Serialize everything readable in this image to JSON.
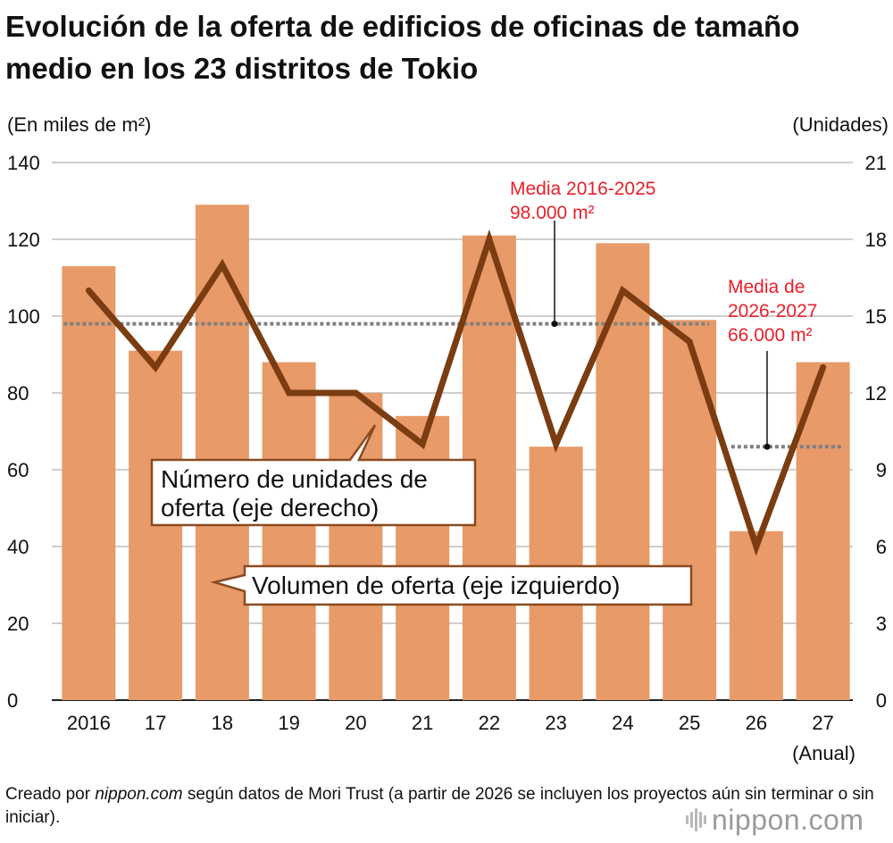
{
  "title": "Evolución de la oferta de edificios de oficinas de tamaño medio en los 23 distritos de Tokio",
  "footer": {
    "prefix": "Creado por ",
    "source": "nippon.com",
    "rest": " según datos de Mori Trust (a partir de 2026 se incluyen los proyectos aún sin terminar o sin iniciar)."
  },
  "logo": {
    "name": "nippon",
    "dot": ".",
    "tld": "com"
  },
  "colors": {
    "bar": "#e89a68",
    "line": "#7a3c10",
    "average_line": "#7f7f7f",
    "annotation": "#e8202a",
    "grid": "#bdbdbd",
    "callout_border": "#8a4a20"
  },
  "chart_data": {
    "type": "bar",
    "categories": [
      "2016",
      "17",
      "18",
      "19",
      "20",
      "21",
      "22",
      "23",
      "24",
      "25",
      "26",
      "27"
    ],
    "x_suffix_label": "(Anual)",
    "left_axis": {
      "label": "(En miles de m²)",
      "ylim": [
        0,
        140
      ],
      "ticks": [
        0,
        20,
        40,
        60,
        80,
        100,
        120,
        140
      ]
    },
    "right_axis": {
      "label": "(Unidades)",
      "ylim": [
        0,
        21
      ],
      "ticks": [
        0,
        3,
        6,
        9,
        12,
        15,
        18,
        21
      ]
    },
    "grid": true,
    "series": [
      {
        "name": "Volumen de oferta (eje izquierdo)",
        "type": "bar",
        "axis": "left",
        "values": [
          113,
          91,
          129,
          88,
          80,
          74,
          121,
          66,
          119,
          99,
          44,
          88
        ]
      },
      {
        "name": "Número de unidades de oferta (eje derecho)",
        "type": "line",
        "axis": "right",
        "values": [
          16,
          13,
          17,
          12,
          12,
          10,
          18,
          10,
          16,
          14,
          6,
          13
        ]
      }
    ],
    "callouts": {
      "line": [
        "Número de unidades de",
        "oferta (eje derecho)"
      ],
      "bar": "Volumen de oferta (eje izquierdo)"
    },
    "averages": [
      {
        "label_lines": [
          "Media 2016-2025",
          "98.000 m²"
        ],
        "value": 98,
        "from": "2016",
        "to": "25"
      },
      {
        "label_lines": [
          "Media de",
          "2026-2027",
          "66.000 m²"
        ],
        "value": 66,
        "from": "26",
        "to": "27"
      }
    ]
  }
}
